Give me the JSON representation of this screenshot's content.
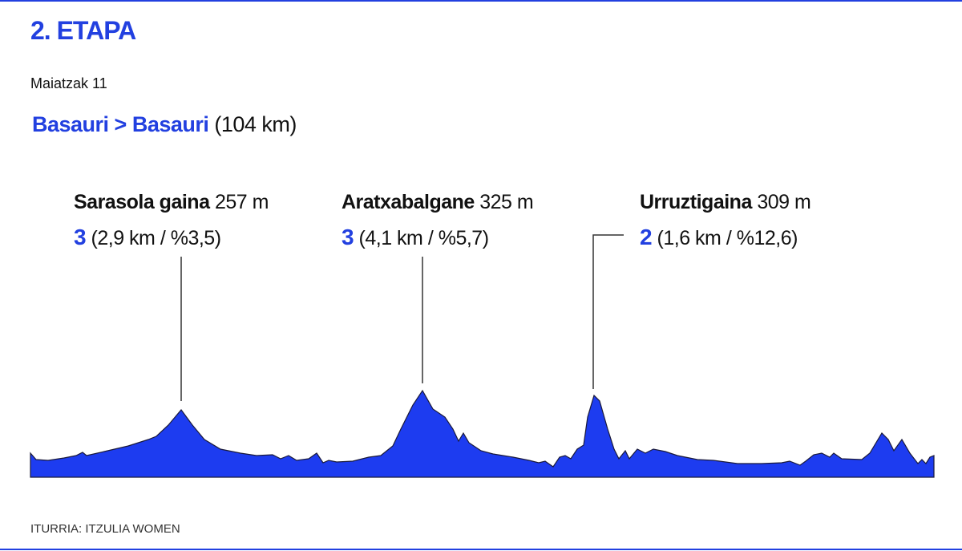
{
  "header": {
    "title": "2. ETAPA",
    "date": "Maiatzak 11",
    "route": "Basauri > Basauri",
    "distance": "(104 km)"
  },
  "climbs": [
    {
      "name": "Sarasola gaina",
      "altitude": "257 m",
      "category": "3",
      "details": "(2,9 km / %3,5)"
    },
    {
      "name": "Aratxabalgane",
      "altitude": "325 m",
      "category": "3",
      "details": "(4,1 km / %5,7)"
    },
    {
      "name": "Urruztigaina",
      "altitude": "309 m",
      "category": "2",
      "details": "(1,6 km / %12,6)"
    }
  ],
  "footer": {
    "source": "ITURRIA: ITZULIA WOMEN"
  }
}
